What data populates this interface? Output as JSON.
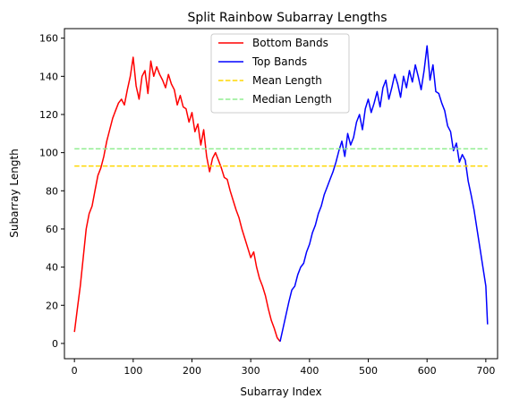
{
  "chart_data": {
    "type": "line",
    "title": "Split Rainbow Subarray Lengths",
    "xlabel": "Subarray Index",
    "ylabel": "Subarray Length",
    "xlim": [
      -17,
      720
    ],
    "ylim": [
      -8,
      165
    ],
    "xticks": [
      0,
      100,
      200,
      300,
      400,
      500,
      600,
      700
    ],
    "yticks": [
      0,
      20,
      40,
      60,
      80,
      100,
      120,
      140,
      160
    ],
    "grid": false,
    "legend_position": "top-center",
    "series": [
      {
        "name": "Bottom Bands",
        "color": "#ff0000",
        "style": "solid",
        "x": [
          0,
          5,
          10,
          15,
          20,
          25,
          30,
          35,
          40,
          45,
          50,
          55,
          60,
          65,
          70,
          75,
          80,
          85,
          90,
          95,
          100,
          105,
          110,
          115,
          120,
          125,
          130,
          135,
          140,
          145,
          150,
          155,
          160,
          165,
          170,
          175,
          180,
          185,
          190,
          195,
          200,
          205,
          210,
          215,
          220,
          225,
          230,
          235,
          240,
          245,
          250,
          255,
          260,
          265,
          270,
          275,
          280,
          285,
          290,
          295,
          300,
          305,
          310,
          315,
          320,
          325,
          330,
          335,
          340,
          345,
          350
        ],
        "y": [
          6,
          18,
          30,
          45,
          60,
          68,
          72,
          80,
          88,
          92,
          98,
          106,
          112,
          118,
          122,
          126,
          128,
          125,
          133,
          140,
          150,
          135,
          128,
          140,
          143,
          131,
          148,
          140,
          145,
          141,
          138,
          134,
          141,
          136,
          133,
          125,
          130,
          124,
          123,
          116,
          121,
          111,
          115,
          104,
          112,
          98,
          90,
          97,
          100,
          96,
          92,
          87,
          86,
          80,
          75,
          70,
          66,
          60,
          55,
          50,
          45,
          48,
          40,
          34,
          30,
          25,
          18,
          12,
          8,
          3,
          1
        ]
      },
      {
        "name": "Top Bands",
        "color": "#0000ff",
        "style": "solid",
        "x": [
          350,
          355,
          360,
          365,
          370,
          375,
          380,
          385,
          390,
          395,
          400,
          405,
          410,
          415,
          420,
          425,
          430,
          435,
          440,
          445,
          450,
          455,
          460,
          465,
          470,
          475,
          480,
          485,
          490,
          495,
          500,
          505,
          510,
          515,
          520,
          525,
          530,
          535,
          540,
          545,
          550,
          555,
          560,
          565,
          570,
          575,
          580,
          585,
          590,
          595,
          600,
          605,
          610,
          615,
          620,
          625,
          630,
          635,
          640,
          645,
          650,
          655,
          660,
          665,
          670,
          675,
          680,
          685,
          690,
          695,
          700,
          703
        ],
        "y": [
          1,
          8,
          15,
          22,
          28,
          30,
          36,
          40,
          42,
          48,
          52,
          58,
          62,
          68,
          72,
          78,
          82,
          86,
          90,
          95,
          101,
          106,
          98,
          110,
          104,
          108,
          116,
          120,
          112,
          123,
          128,
          121,
          126,
          132,
          124,
          134,
          138,
          128,
          134,
          141,
          136,
          129,
          140,
          134,
          143,
          137,
          146,
          140,
          133,
          143,
          156,
          138,
          146,
          132,
          131,
          126,
          122,
          114,
          111,
          101,
          105,
          95,
          99,
          96,
          85,
          78,
          70,
          60,
          50,
          40,
          30,
          10
        ]
      },
      {
        "name": "Mean Length",
        "color": "#ffd700",
        "style": "dashed",
        "x": [
          0,
          703
        ],
        "y": [
          93,
          93
        ]
      },
      {
        "name": "Median Length",
        "color": "#90ee90",
        "style": "dashed",
        "x": [
          0,
          703
        ],
        "y": [
          102,
          102
        ]
      }
    ]
  }
}
